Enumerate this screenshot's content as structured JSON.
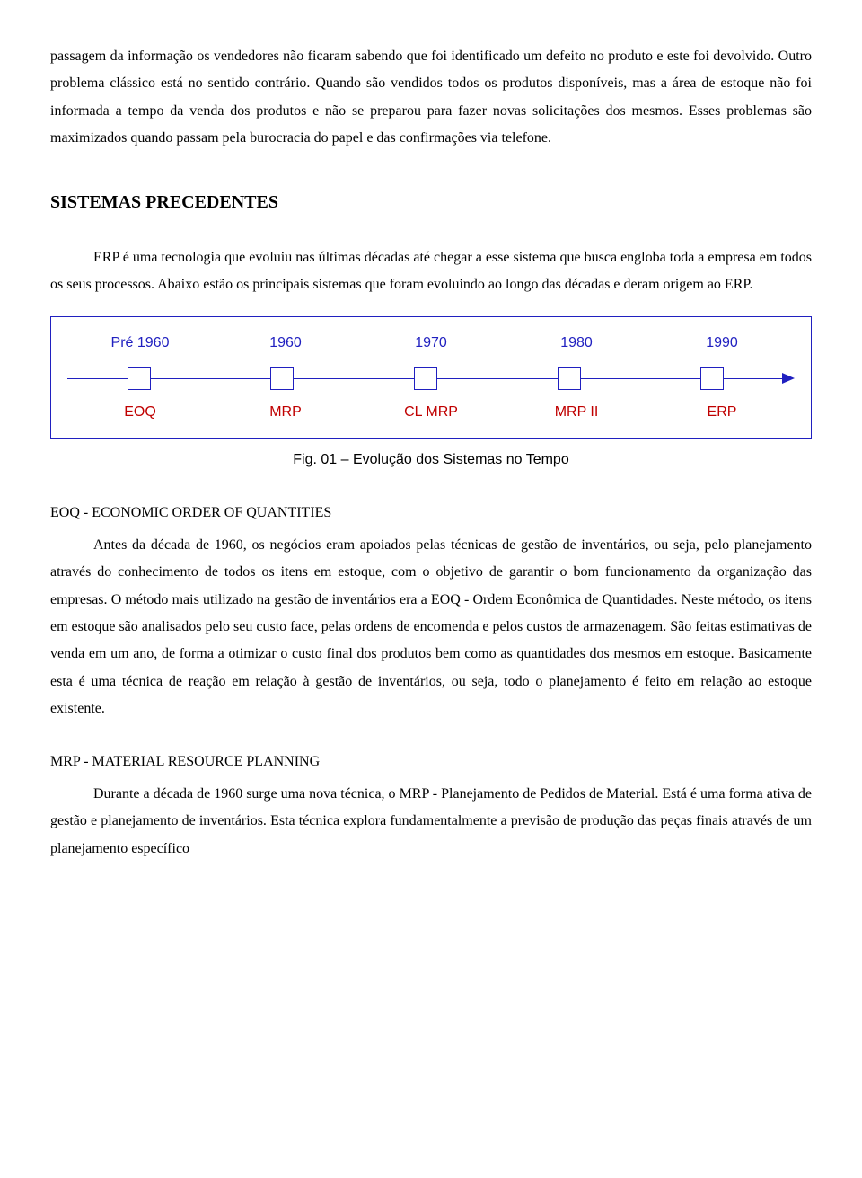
{
  "para1": "passagem da informação os vendedores não ficaram sabendo que foi identificado um defeito no produto e este foi devolvido. Outro problema clássico está no sentido contrário. Quando são vendidos todos os produtos disponíveis, mas a área de estoque não foi informada a tempo da venda dos produtos e não se preparou para fazer novas solicitações dos mesmos. Esses problemas são maximizados quando passam pela burocracia do papel e das confirmações via telefone.",
  "heading1": "SISTEMAS PRECEDENTES",
  "para2": "ERP é uma tecnologia que evoluiu nas últimas décadas até chegar a esse sistema que busca engloba toda a empresa em todos os seus processos. Abaixo estão os principais sistemas que foram evoluindo ao longo das décadas e deram origem ao ERP.",
  "timeline": {
    "years": [
      "Pré 1960",
      "1960",
      "1970",
      "1980",
      "1990"
    ],
    "labels": [
      "EOQ",
      "MRP",
      "CL MRP",
      "MRP II",
      "ERP"
    ],
    "year_color": "#2020c0",
    "label_color": "#c00000",
    "border_color": "#2020c0",
    "line_color": "#2020c0"
  },
  "caption": "Fig. 01 – Evolução dos Sistemas no Tempo",
  "sub1": "EOQ - ECONOMIC ORDER OF QUANTITIES",
  "para3": "Antes da década de 1960, os negócios eram apoiados pelas técnicas de gestão de inventários, ou seja, pelo planejamento através do conhecimento de todos os itens em estoque, com o objetivo de garantir o bom funcionamento da organização das empresas. O método mais utilizado na gestão de inventários era a EOQ - Ordem Econômica de Quantidades. Neste método, os itens em estoque são analisados pelo seu custo face, pelas ordens de encomenda e pelos custos de armazenagem. São feitas estimativas de venda em um ano, de forma a otimizar o custo final dos produtos bem como as quantidades dos mesmos em estoque. Basicamente esta é uma técnica de reação em relação à gestão de inventários, ou seja, todo o planejamento é feito em relação ao estoque existente.",
  "sub2": "MRP - MATERIAL RESOURCE PLANNING",
  "para4": "Durante a década de 1960 surge uma nova técnica, o MRP - Planejamento de Pedidos de Material. Está é uma forma ativa de gestão e planejamento de inventários. Esta técnica explora fundamentalmente a previsão de produção das peças finais através de um planejamento específico"
}
